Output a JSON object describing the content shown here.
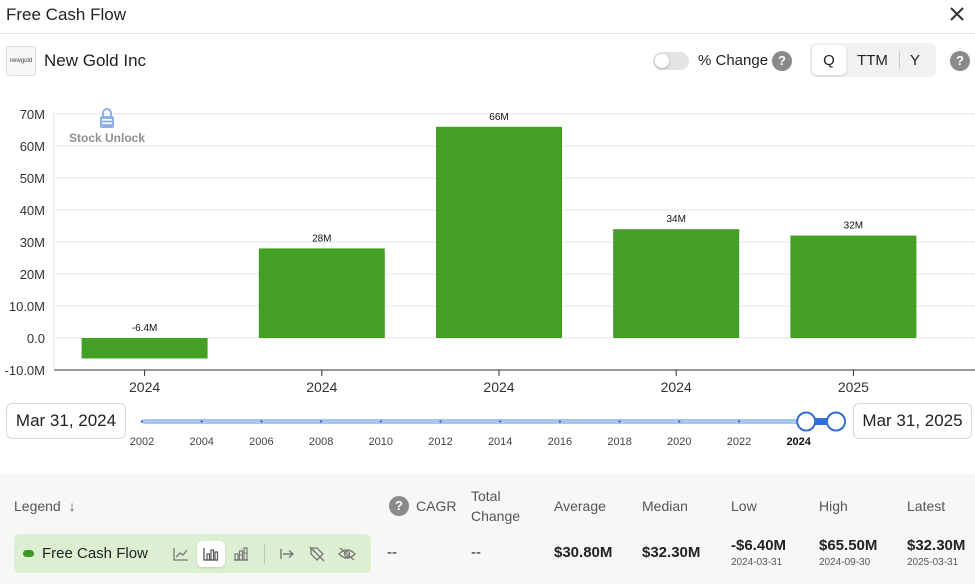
{
  "window": {
    "title": "Free Cash Flow"
  },
  "company": {
    "logo_text": "newgold",
    "name": "New Gold Inc"
  },
  "controls": {
    "pct_change_label": "% Change",
    "pct_change_on": false,
    "help_glyph": "?",
    "periods": [
      "Q",
      "TTM",
      "Y"
    ],
    "active_period": "Q"
  },
  "watermark": {
    "text": "Stock Unlock"
  },
  "chart_data": {
    "type": "bar",
    "title": "Free Cash Flow",
    "categories": [
      "2024",
      "2024",
      "2024",
      "2024",
      "2025"
    ],
    "values": [
      -6.4,
      28,
      66,
      34,
      32
    ],
    "value_labels": [
      "-6.4M",
      "28M",
      "66M",
      "34M",
      "32M"
    ],
    "y_ticks": [
      -10,
      0,
      10,
      20,
      30,
      40,
      50,
      60,
      70
    ],
    "y_tick_labels": [
      "-10.0M",
      "0.0",
      "10.0M",
      "20M",
      "30M",
      "40M",
      "50M",
      "60M",
      "70M"
    ],
    "ylim": [
      -10,
      70
    ],
    "unit": "M",
    "grid": true,
    "bar_color": "#43a024"
  },
  "range": {
    "start_label": "Mar 31, 2024",
    "end_label": "Mar 31, 2025",
    "years": [
      "2002",
      "2004",
      "2006",
      "2008",
      "2010",
      "2012",
      "2014",
      "2016",
      "2018",
      "2020",
      "2022",
      "2024"
    ],
    "active_year": "2024",
    "selected_from": 2024.25,
    "selected_to": 2025.25
  },
  "table": {
    "headers": {
      "legend": "Legend",
      "sort_glyph": "↓",
      "cagr": "CAGR",
      "total_change_1": "Total",
      "total_change_2": "Change",
      "average": "Average",
      "median": "Median",
      "low": "Low",
      "high": "High",
      "latest": "Latest"
    },
    "row": {
      "name": "Free Cash Flow",
      "cagr": "--",
      "total_change": "--",
      "average": "$30.80M",
      "median": "$32.30M",
      "low": "-$6.40M",
      "low_date": "2024-03-31",
      "high": "$65.50M",
      "high_date": "2024-09-30",
      "latest": "$32.30M",
      "latest_date": "2025-03-31"
    }
  }
}
